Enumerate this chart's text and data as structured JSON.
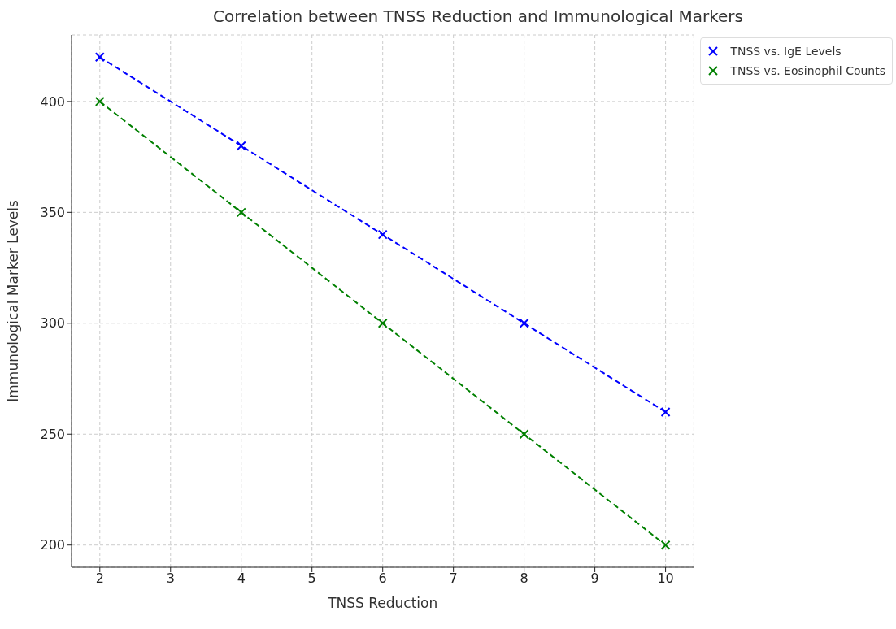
{
  "chart_data": {
    "type": "line",
    "title": "Correlation between TNSS Reduction and Immunological Markers",
    "xlabel": "TNSS Reduction",
    "ylabel": "Immunological Marker Levels",
    "x": [
      2,
      4,
      6,
      8,
      10
    ],
    "series": [
      {
        "name": "TNSS vs. IgE Levels",
        "color": "#0000ff",
        "values": [
          420,
          380,
          340,
          300,
          260
        ]
      },
      {
        "name": "TNSS vs. Eosinophil Counts",
        "color": "#008000",
        "values": [
          400,
          350,
          300,
          250,
          200
        ]
      }
    ],
    "xlim": [
      1.6,
      10.4
    ],
    "xticks": [
      2,
      3,
      4,
      5,
      6,
      7,
      8,
      9,
      10
    ],
    "ylim": [
      190,
      430
    ],
    "yticks": [
      200,
      250,
      300,
      350,
      400
    ],
    "grid": true,
    "legend": "top right",
    "marker": "cross",
    "line_style": "dashed"
  }
}
